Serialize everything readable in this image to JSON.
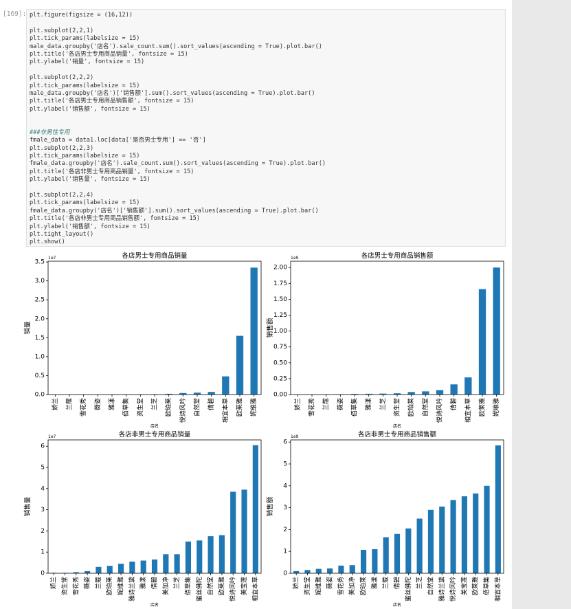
{
  "cell": {
    "prompt": "[169]:",
    "code": [
      "plt.figure(figsize = (16,12))",
      "plt.subplot(2,2,1)",
      "plt.tick_params(labelsize = 15)",
      "male_data.groupby('店名').sale_count.sum().sort_values(ascending = True).plot.bar()",
      "plt.title('各店男士专用商品销量', fontsize = 15)",
      "plt.ylabel('销量', fontsize = 15)",
      "plt.subplot(2,2,2)",
      "plt.tick_params(labelsize = 15)",
      "male_data.groupby('店名')['销售额'].sum().sort_values(ascending = True).plot.bar()",
      "plt.title('各店男士专用商品销售额', fontsize = 15)",
      "plt.ylabel('销售额', fontsize = 15)",
      "###非男性专用",
      "fmale_data = data1.loc[data['是否男士专用'] == '否']",
      "plt.subplot(2,2,3)",
      "plt.tick_params(labelsize = 15)",
      "fmale_data.groupby('店名').sale_count.sum().sort_values(ascending = True).plot.bar()",
      "plt.title('各店非男士专用商品销量', fontsize = 15)",
      "plt.ylabel('销售量', fontsize = 15)",
      "plt.subplot(2,2,4)",
      "plt.tick_params(labelsize = 15)",
      "fmale_data.groupby('店名')['销售额'].sum().sort_values(ascending = True).plot.bar()",
      "plt.title('各店非男士专用商品销售额', fontsize = 15)",
      "plt.ylabel('销售额', fontsize = 15)",
      "plt.tight_layout()",
      "plt.show()"
    ]
  },
  "chart_data": [
    {
      "type": "bar",
      "title": "各店男士专用商品销量",
      "ylabel": "销量",
      "xlabel": "店名",
      "offset_label": "1e7",
      "color": "#1f77b4",
      "categories": [
        "娇兰",
        "兰蔻",
        "雪花秀",
        "薇姿",
        "雅漾",
        "佰草集",
        "资生堂",
        "兰芝",
        "欧珀莱",
        "悦诗风吟",
        "自然堂",
        "倩碧",
        "相宜本草",
        "欧莱雅",
        "妮维雅"
      ],
      "values": [
        0,
        0,
        0,
        0,
        0.003,
        0.005,
        0.005,
        0.01,
        0.02,
        0.04,
        0.05,
        0.07,
        0.48,
        1.55,
        3.35
      ],
      "ylim": [
        0,
        3.52
      ],
      "yticks": [
        {
          "value": 0,
          "label": "0.0"
        },
        0.5,
        {
          "value": 1,
          "label": "1.0"
        },
        1.5,
        {
          "value": 2,
          "label": "2.0"
        },
        2.5,
        {
          "value": 3,
          "label": "3.0"
        },
        3.5
      ]
    },
    {
      "type": "bar",
      "title": "各店男士专用商品销售额",
      "ylabel": "销售额",
      "xlabel": "店名",
      "offset_label": "1e9",
      "color": "#1f77b4",
      "categories": [
        "娇兰",
        "雪花秀",
        "兰蔻",
        "薇姿",
        "佰草集",
        "雅漾",
        "兰芝",
        "资生堂",
        "欧珀莱",
        "自然堂",
        "悦诗风吟",
        "倩碧",
        "相宜本草",
        "欧莱雅",
        "妮维雅"
      ],
      "values": [
        0,
        0,
        0.002,
        0.005,
        0.01,
        0.012,
        0.015,
        0.02,
        0.04,
        0.05,
        0.07,
        0.16,
        0.27,
        1.66,
        2.0
      ],
      "ylim": [
        0,
        2.1
      ],
      "yticks": [
        {
          "value": 0,
          "label": "0.00"
        },
        0.25,
        {
          "value": 0.5,
          "label": "0.50"
        },
        0.75,
        {
          "value": 1,
          "label": "1.00"
        },
        1.25,
        {
          "value": 1.5,
          "label": "1.50"
        },
        1.75,
        {
          "value": 2,
          "label": "2.00"
        }
      ]
    },
    {
      "type": "bar",
      "title": "各店非男士专用商品销量",
      "ylabel": "销售量",
      "xlabel": "店名",
      "offset_label": "1e7",
      "color": "#1f77b4",
      "categories": [
        "娇兰",
        "资生堂",
        "雪花秀",
        "薇姿",
        "兰蔻",
        "欧珀莱",
        "妮维雅",
        "雅诗兰黛",
        "雅漾",
        "倩碧",
        "美加净",
        "兰芝",
        "佰草集",
        "蜜丝佛陀",
        "自然堂",
        "欧莱雅",
        "悦诗风吟",
        "美宝莲",
        "相宜本草"
      ],
      "values": [
        0.02,
        0.02,
        0.05,
        0.1,
        0.3,
        0.35,
        0.45,
        0.55,
        0.6,
        0.65,
        0.9,
        0.9,
        1.5,
        1.55,
        1.75,
        1.8,
        3.85,
        3.95,
        6.05
      ],
      "ylim": [
        0,
        6.3
      ],
      "yticks": [
        0,
        1,
        2,
        3,
        4,
        5,
        6
      ]
    },
    {
      "type": "bar",
      "title": "各店非男士专用商品销售额",
      "ylabel": "销售额",
      "xlabel": "店名",
      "offset_label": "1e9",
      "color": "#1f77b4",
      "categories": [
        "娇兰",
        "资生堂",
        "妮维雅",
        "薇姿",
        "雪花秀",
        "美加净",
        "欧珀莱",
        "雅漾",
        "兰蔻",
        "倩碧",
        "蜜丝佛陀",
        "兰芝",
        "自然堂",
        "雅诗兰黛",
        "悦诗风吟",
        "美宝莲",
        "欧莱雅",
        "佰草集",
        "相宜本草"
      ],
      "values": [
        0.1,
        0.15,
        0.2,
        0.22,
        0.35,
        0.37,
        1.07,
        1.1,
        1.65,
        1.8,
        2.05,
        2.5,
        2.9,
        3.05,
        3.35,
        3.52,
        3.65,
        4.0,
        5.85
      ],
      "ylim": [
        0,
        6.1
      ],
      "yticks": [
        0,
        1,
        2,
        3,
        4,
        5,
        6
      ]
    }
  ]
}
